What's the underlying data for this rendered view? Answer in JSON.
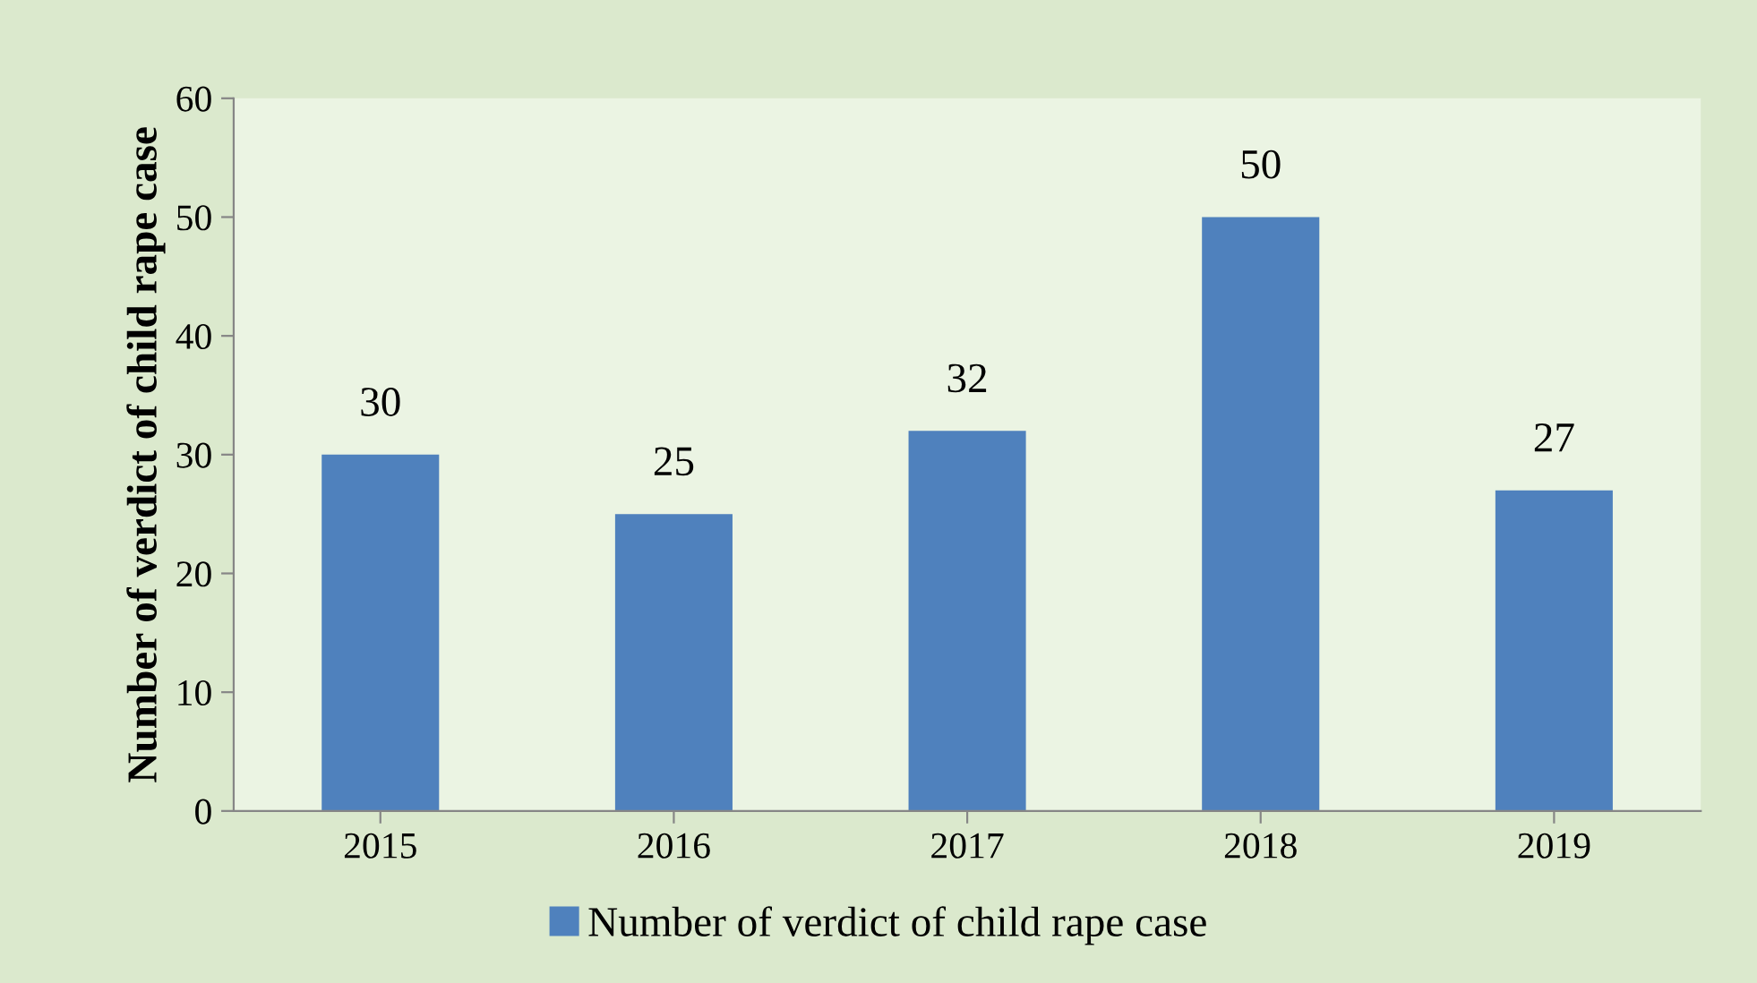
{
  "chart_data": {
    "type": "bar",
    "ylabel": "Number of verdict of child rape case",
    "categories": [
      "2015",
      "2016",
      "2017",
      "2018",
      "2019"
    ],
    "series": [
      {
        "name": "Number of verdict of child rape case",
        "color": "#4f81bd",
        "values": [
          30,
          25,
          32,
          50,
          27
        ]
      }
    ],
    "ylim": [
      0,
      60
    ],
    "yticks": [
      0,
      10,
      20,
      30,
      40,
      50,
      60
    ],
    "data_labels": true,
    "grid": false,
    "legend": "bottom"
  }
}
